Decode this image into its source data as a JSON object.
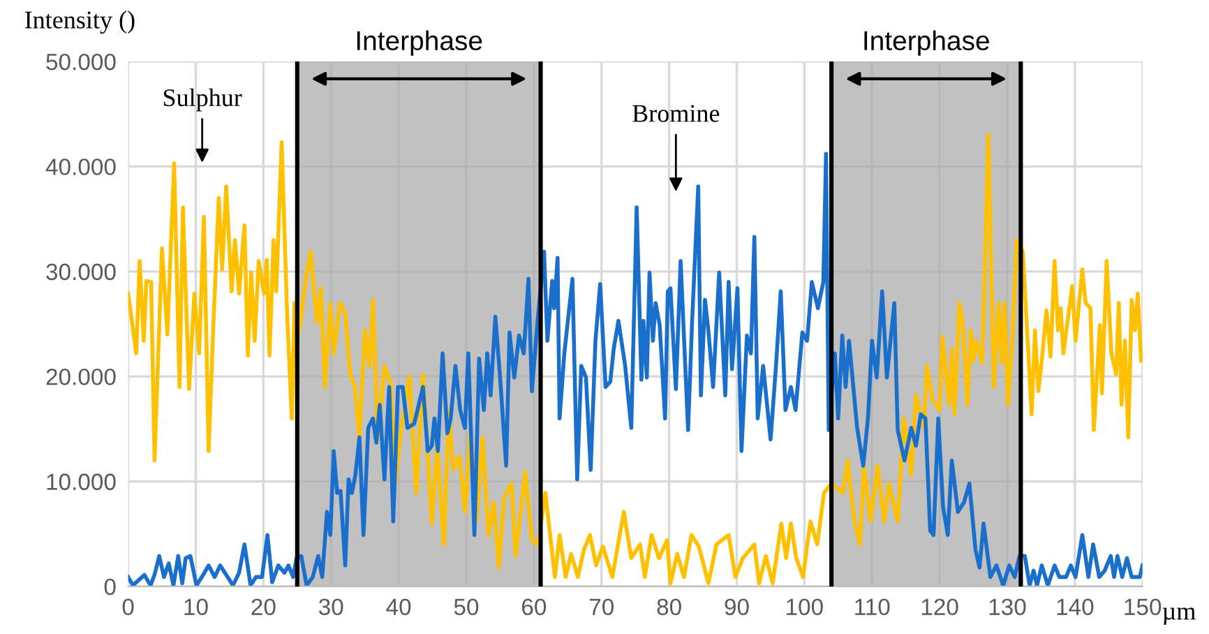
{
  "chart_data": {
    "type": "line",
    "ylabel": "Intensity ()",
    "xlabel": "µm",
    "xlim": [
      0,
      150
    ],
    "xticks": [
      0,
      10,
      20,
      30,
      40,
      50,
      60,
      70,
      80,
      90,
      100,
      110,
      120,
      130,
      140,
      150
    ],
    "ylim": [
      0,
      50000
    ],
    "yticks": [
      0,
      {
        "value": 10000,
        "label": "10.000"
      },
      {
        "value": 20000,
        "label": "20.000"
      },
      {
        "value": 30000,
        "label": "30.000"
      },
      {
        "value": 40000,
        "label": "40.000"
      },
      {
        "value": 50000,
        "label": "50.000"
      }
    ],
    "grid": true,
    "legend": false,
    "marker": "none",
    "line_style": "solid",
    "series": [
      {
        "color": "#ffc000",
        "x": [
          0,
          1.2,
          1.7,
          2.3,
          2.7,
          3.4,
          3.9,
          5.0,
          5.8,
          6.8,
          7.6,
          8.1,
          9.0,
          9.8,
          10.5,
          11.2,
          11.9,
          12.6,
          13.4,
          13.9,
          14.5,
          15.3,
          15.8,
          16.4,
          17.2,
          17.7,
          18.2,
          18.7,
          19.3,
          20.1,
          20.5,
          20.9,
          21.5,
          21.9,
          22.7,
          23.5,
          24.2,
          24.6,
          25.3,
          26.4,
          27.0,
          27.9,
          28.5,
          29.1,
          29.9,
          30.4,
          31.3,
          32.1,
          32.8,
          33.5,
          34.2,
          35.0,
          35.7,
          36.2,
          36.9,
          37.9,
          38.8,
          39.5,
          40.4,
          41.6,
          42.6,
          43.6,
          44.9,
          45.7,
          46.7,
          47.4,
          48.1,
          49.0,
          49.8,
          50.6,
          51.5,
          52.4,
          53.3,
          54.1,
          54.8,
          55.6,
          56.7,
          57.3,
          58.7,
          59.7,
          60.6,
          61.7,
          62.4,
          63.1,
          63.8,
          64.7,
          65.5,
          66.5,
          67.4,
          68.3,
          69.2,
          70.2,
          71.6,
          73.3,
          74.4,
          75.7,
          76.4,
          77.4,
          78.5,
          79.7,
          80.2,
          81.2,
          82.2,
          83.3,
          84.4,
          85.8,
          87.0,
          88.8,
          89.8,
          90.9,
          92.6,
          93.3,
          94.3,
          95.3,
          96.6,
          97.3,
          98.0,
          98.8,
          99.8,
          100.9,
          101.9,
          102.9,
          104.0,
          105.7,
          106.4,
          107.4,
          108.2,
          108.8,
          109.8,
          110.8,
          111.8,
          112.5,
          113.8,
          114.7,
          115.8,
          116.5,
          117.7,
          118.1,
          119.0,
          120.0,
          120.4,
          121.4,
          121.8,
          122.2,
          122.9,
          123.4,
          124.1,
          124.6,
          125.0,
          125.4,
          126.3,
          127.2,
          128.0,
          128.7,
          129.2,
          129.6,
          130.1,
          130.8,
          131.4,
          132.3,
          133.6,
          134.1,
          134.6,
          135.1,
          135.8,
          136.4,
          137.0,
          137.5,
          137.9,
          138.3,
          139.6,
          140.1,
          141.1,
          141.6,
          142.3,
          142.8,
          143.7,
          144.0,
          144.7,
          145.4,
          146.1,
          146.5,
          146.9,
          147.4,
          147.9,
          148.4,
          148.9,
          149.3,
          149.8
        ],
        "values": [
          27900,
          22200,
          31000,
          23400,
          29100,
          29000,
          12000,
          32200,
          24000,
          40300,
          19000,
          36100,
          18800,
          27900,
          22200,
          35200,
          12900,
          24900,
          37000,
          30200,
          38100,
          28100,
          33000,
          27900,
          34400,
          22000,
          29900,
          23400,
          31000,
          27900,
          31100,
          22000,
          33000,
          28100,
          42300,
          26100,
          16000,
          27000,
          24400,
          29900,
          31900,
          25100,
          28400,
          19000,
          27000,
          22200,
          27000,
          26100,
          20300,
          19000,
          14200,
          24400,
          21000,
          27300,
          14200,
          21000,
          19500,
          9800,
          15100,
          20000,
          8900,
          20200,
          6000,
          13400,
          4000,
          16800,
          11100,
          12400,
          7100,
          14600,
          6200,
          14200,
          4900,
          8000,
          1800,
          8400,
          9800,
          2900,
          10900,
          4400,
          4000,
          8900,
          4900,
          900,
          4900,
          900,
          3100,
          900,
          3500,
          4900,
          2000,
          3800,
          900,
          7100,
          2700,
          4000,
          900,
          4900,
          2700,
          4400,
          300,
          3100,
          900,
          4900,
          3800,
          300,
          4000,
          4900,
          900,
          2700,
          4000,
          300,
          2900,
          300,
          6000,
          2700,
          6000,
          2700,
          900,
          6200,
          4000,
          8900,
          9800,
          8900,
          12000,
          6200,
          4000,
          11500,
          6200,
          11500,
          6200,
          9800,
          6200,
          16000,
          10600,
          18200,
          15100,
          21000,
          17700,
          16800,
          23800,
          17300,
          22600,
          16400,
          27000,
          25300,
          17300,
          24400,
          21500,
          23400,
          21300,
          43000,
          19000,
          27000,
          21300,
          27000,
          17300,
          24400,
          33000,
          31900,
          16400,
          24400,
          18600,
          21500,
          26300,
          21900,
          31000,
          24400,
          26500,
          22200,
          28600,
          23400,
          30200,
          27000,
          26500,
          14900,
          24900,
          18400,
          31000,
          22200,
          20200,
          27000,
          17300,
          23400,
          14200,
          27300,
          24400,
          27900,
          21500
        ]
      },
      {
        "color": "#1a6fcc",
        "x": [
          0,
          0.7,
          2.4,
          3.3,
          3.9,
          4.6,
          5.3,
          6.0,
          6.7,
          7.4,
          8.0,
          8.5,
          9.2,
          10.1,
          10.9,
          11.9,
          12.8,
          13.6,
          14.7,
          15.5,
          16.4,
          17.2,
          18.1,
          18.9,
          19.8,
          20.6,
          21.3,
          22.2,
          23.1,
          23.7,
          24.4,
          24.9,
          25.6,
          26.4,
          27.3,
          28.1,
          28.7,
          29.4,
          29.9,
          30.4,
          30.9,
          31.4,
          32.1,
          32.6,
          33.1,
          33.6,
          34.2,
          34.8,
          35.5,
          36.2,
          36.7,
          37.2,
          37.9,
          38.6,
          39.2,
          39.9,
          40.6,
          41.3,
          42.3,
          43.6,
          44.3,
          44.9,
          45.3,
          45.8,
          46.5,
          47.2,
          47.7,
          48.4,
          49.1,
          49.8,
          50.3,
          51.2,
          51.9,
          52.6,
          53.1,
          53.6,
          54.3,
          55.0,
          55.9,
          56.4,
          57.1,
          57.8,
          58.5,
          59.2,
          59.7,
          60.6,
          61.5,
          62.0,
          62.7,
          63.0,
          63.5,
          63.8,
          64.5,
          65.7,
          66.4,
          67.0,
          67.7,
          68.4,
          69.1,
          69.8,
          70.6,
          71.3,
          71.8,
          72.5,
          73.5,
          74.4,
          75.2,
          75.9,
          76.2,
          76.7,
          77.1,
          77.6,
          78.0,
          78.6,
          79.4,
          79.8,
          80.2,
          81.0,
          81.7,
          82.8,
          83.4,
          84.3,
          84.7,
          85.3,
          85.8,
          86.5,
          87.4,
          88.3,
          88.8,
          89.3,
          90.1,
          90.7,
          91.5,
          92.1,
          92.6,
          93.1,
          93.9,
          95.0,
          95.8,
          96.5,
          97.2,
          98.0,
          98.7,
          99.7,
          100.4,
          101.1,
          102.0,
          102.8,
          103.2,
          103.6,
          104.5,
          105.0,
          105.6,
          106.1,
          106.6,
          107.8,
          108.7,
          109.4,
          110.0,
          110.7,
          111.5,
          112.2,
          113.3,
          113.8,
          114.8,
          115.8,
          116.5,
          117.2,
          117.9,
          118.6,
          119.1,
          119.8,
          120.5,
          121.2,
          121.8,
          122.7,
          123.6,
          124.4,
          125.3,
          125.9,
          126.5,
          127.5,
          128.4,
          129.4,
          130.3,
          131.1,
          131.8,
          132.6,
          133.3,
          133.9,
          134.4,
          135.1,
          136.0,
          137.0,
          137.7,
          138.7,
          139.4,
          140.1,
          141.1,
          142.0,
          142.7,
          143.6,
          144.4,
          145.3,
          145.8,
          146.3,
          147.0,
          147.7,
          148.4,
          149.6,
          150
        ],
        "values": [
          900,
          100,
          1100,
          100,
          1100,
          2900,
          900,
          2200,
          100,
          2900,
          300,
          2700,
          2900,
          100,
          900,
          2000,
          900,
          2000,
          900,
          100,
          1300,
          4000,
          100,
          900,
          900,
          4900,
          400,
          2000,
          1300,
          2000,
          900,
          2700,
          2900,
          100,
          900,
          2900,
          900,
          7100,
          4900,
          12900,
          8900,
          9100,
          2000,
          10200,
          8900,
          10600,
          14200,
          4900,
          15100,
          16000,
          13700,
          17300,
          10200,
          19000,
          6200,
          19000,
          19000,
          15100,
          15500,
          19000,
          12900,
          13400,
          16000,
          12900,
          22200,
          14600,
          16000,
          21000,
          16800,
          15100,
          22200,
          4900,
          21700,
          16800,
          22200,
          18200,
          25700,
          19900,
          11500,
          24200,
          19900,
          23900,
          22200,
          29300,
          18600,
          25700,
          31900,
          23400,
          29100,
          26500,
          31300,
          16000,
          22200,
          29300,
          10200,
          21000,
          19900,
          11100,
          23400,
          28800,
          19000,
          19500,
          22600,
          25300,
          21000,
          15100,
          36100,
          19700,
          25300,
          19900,
          29900,
          23400,
          27000,
          24900,
          16000,
          28100,
          28400,
          18800,
          31000,
          14900,
          25300,
          38100,
          18200,
          27300,
          24400,
          19000,
          29900,
          18200,
          29000,
          20700,
          28400,
          12900,
          23900,
          22200,
          33300,
          16000,
          21000,
          14000,
          21000,
          28100,
          16800,
          19000,
          16800,
          24200,
          23400,
          29000,
          26500,
          29000,
          41200,
          14900,
          22200,
          16000,
          23900,
          19000,
          23400,
          15100,
          11500,
          16000,
          23400,
          19900,
          28100,
          19900,
          27000,
          14900,
          12000,
          15100,
          13400,
          16400,
          16000,
          5300,
          4900,
          16000,
          7600,
          4900,
          12000,
          7100,
          8000,
          9800,
          3500,
          1800,
          6000,
          900,
          2000,
          100,
          2000,
          900,
          2900,
          2900,
          100,
          1500,
          100,
          2000,
          100,
          2000,
          900,
          900,
          2000,
          900,
          4900,
          900,
          4000,
          900,
          1500,
          2900,
          900,
          2900,
          900,
          2700,
          900,
          900,
          2000
        ]
      }
    ],
    "bands": [
      {
        "axis": "x",
        "from": 25,
        "to": 61,
        "label": "Interphase",
        "color": "#a6a6a6"
      },
      {
        "axis": "x",
        "from": 104,
        "to": 132,
        "label": "Interphase",
        "color": "#a6a6a6"
      }
    ],
    "ref_lines": [
      {
        "axis": "x",
        "value": 25,
        "color": "#000000"
      },
      {
        "axis": "x",
        "value": 61,
        "color": "#000000"
      },
      {
        "axis": "x",
        "value": 104,
        "color": "#000000"
      },
      {
        "axis": "x",
        "value": 132,
        "color": "#000000"
      }
    ],
    "annotations": [
      "Sulphur",
      "Bromine"
    ]
  }
}
